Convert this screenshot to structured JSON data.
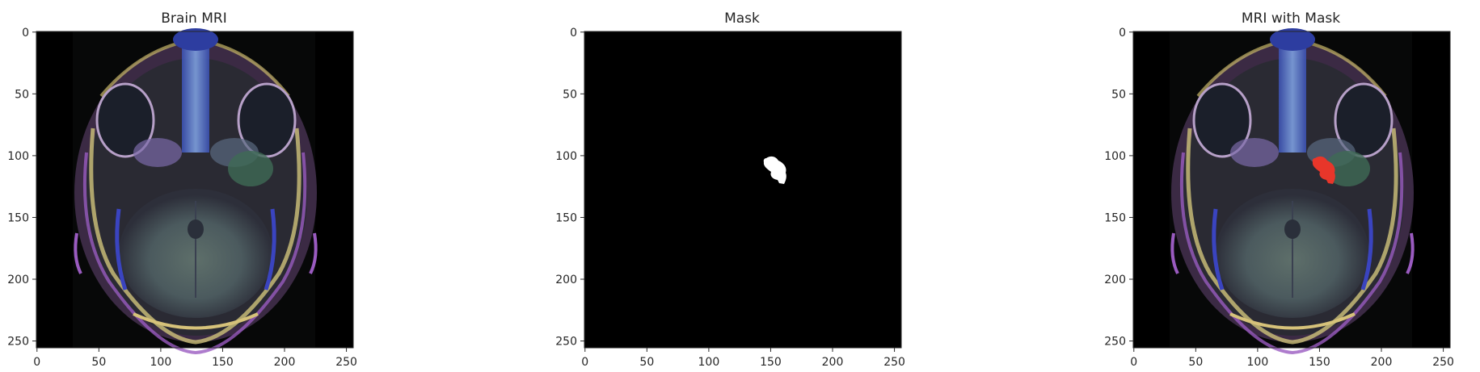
{
  "figure": {
    "panels": [
      {
        "title": "Brain MRI",
        "image": "axial-brain-mri-colored",
        "x_ticks": [
          "0",
          "50",
          "100",
          "150",
          "200",
          "250"
        ],
        "y_ticks": [
          "0",
          "50",
          "100",
          "150",
          "200",
          "250"
        ]
      },
      {
        "title": "Mask",
        "image": "binary-tumor-mask",
        "x_ticks": [
          "0",
          "50",
          "100",
          "150",
          "200",
          "250"
        ],
        "y_ticks": [
          "0",
          "50",
          "100",
          "150",
          "200",
          "250"
        ]
      },
      {
        "title": "MRI with Mask",
        "image": "axial-brain-mri-with-red-overlay",
        "x_ticks": [
          "0",
          "50",
          "100",
          "150",
          "200",
          "250"
        ],
        "y_ticks": [
          "0",
          "50",
          "100",
          "150",
          "200",
          "250"
        ]
      }
    ]
  },
  "colors": {
    "background": "#ffffff",
    "mask_region": "#ffffff",
    "overlay_region": "#e8362a",
    "image_background": "#000000"
  }
}
